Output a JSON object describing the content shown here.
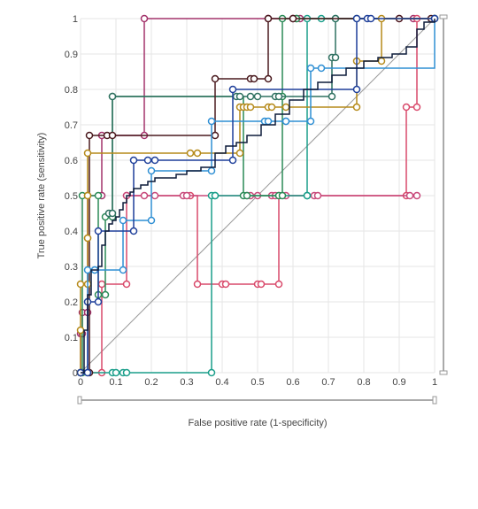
{
  "chart_data": {
    "type": "line",
    "title": "",
    "xlabel": "False positive rate (1-specificity)",
    "ylabel": "True positive rate (sensitivity)",
    "xlim": [
      0,
      1
    ],
    "ylim": [
      0,
      1
    ],
    "x_ticks": [
      "0",
      "0.1",
      "0.2",
      "0.3",
      "0.4",
      "0.5",
      "0.6",
      "0.7",
      "0.8",
      "0.9",
      "1"
    ],
    "y_ticks": [
      "0",
      "0.1",
      "0.2",
      "0.3",
      "0.4",
      "0.5",
      "0.6",
      "0.7",
      "0.8",
      "0.9",
      "1"
    ],
    "grid": true,
    "legend": "none",
    "reference_line": {
      "x": [
        0,
        1
      ],
      "y": [
        0,
        1
      ],
      "color": "#999999"
    },
    "series": [
      {
        "color": "#a3336b",
        "x": [
          0,
          0,
          0.005,
          0.005,
          0.02,
          0.02,
          0.06,
          0.06,
          0.18,
          0.18,
          0.53,
          0.53,
          0.6,
          0.6,
          0.62,
          0.9,
          0.94,
          1
        ],
        "y": [
          0,
          0.11,
          0.11,
          0.17,
          0.17,
          0.5,
          0.5,
          0.67,
          0.67,
          1,
          1,
          1,
          1,
          1,
          1,
          1,
          1,
          1
        ]
      },
      {
        "color": "#d94a6b",
        "x": [
          0,
          0.06,
          0.06,
          0.13,
          0.13,
          0.31,
          0.33,
          0.4,
          0.41,
          0.5,
          0.51,
          0.56,
          0.56,
          0.92,
          0.92,
          0.95,
          0.95,
          1
        ],
        "y": [
          0,
          0,
          0.25,
          0.25,
          0.5,
          0.5,
          0.25,
          0.25,
          0.25,
          0.25,
          0.25,
          0.25,
          0.5,
          0.5,
          0.75,
          0.75,
          1,
          1
        ]
      },
      {
        "color": "#c8487a",
        "x": [
          0.13,
          0.18,
          0.21,
          0.29,
          0.3,
          0.47,
          0.48,
          0.5,
          0.54,
          0.55,
          0.58,
          0.66,
          0.67,
          0.93,
          0.95
        ],
        "y": [
          0.5,
          0.5,
          0.5,
          0.5,
          0.5,
          0.5,
          0.5,
          0.5,
          0.5,
          0.5,
          0.5,
          0.5,
          0.5,
          0.5,
          0.5
        ]
      },
      {
        "color": "#1a9e8a",
        "x": [
          0,
          0.09,
          0.1,
          0.12,
          0.13,
          0.37,
          0.37,
          0.38,
          0.38,
          0.64,
          0.64,
          0.64,
          0.64,
          0.68,
          0.72,
          1
        ],
        "y": [
          0,
          0,
          0,
          0,
          0,
          0,
          0.5,
          0.5,
          0.5,
          0.5,
          0.5,
          0.5,
          1,
          1,
          1,
          1
        ]
      },
      {
        "color": "#2a8a56",
        "x": [
          0,
          0.005,
          0.005,
          0.05,
          0.05,
          0.07,
          0.07,
          0.09,
          0.09,
          0.46,
          0.47,
          0.56,
          0.57,
          0.57,
          0.57,
          0.61,
          0.61,
          1
        ],
        "y": [
          0,
          0,
          0.5,
          0.5,
          0.22,
          0.22,
          0.44,
          0.44,
          0.78,
          0.5,
          0.5,
          0.5,
          0.5,
          0.78,
          1,
          1,
          1,
          1
        ]
      },
      {
        "color": "#2e7060",
        "x": [
          0.08,
          0.09,
          0.09,
          0.44,
          0.45,
          0.48,
          0.5,
          0.55,
          0.56,
          0.71,
          0.71,
          0.72,
          0.72,
          0.78,
          1
        ],
        "y": [
          0.45,
          0.45,
          0.78,
          0.78,
          0.78,
          0.78,
          0.78,
          0.78,
          0.78,
          0.78,
          0.89,
          0.89,
          1,
          1,
          1
        ]
      },
      {
        "color": "#4a1a1e",
        "x": [
          0,
          0.025,
          0.025,
          0.075,
          0.09,
          0.38,
          0.38,
          0.48,
          0.49,
          0.53,
          0.53,
          0.6,
          0.9,
          0.99
        ],
        "y": [
          0,
          0,
          0.67,
          0.67,
          0.67,
          0.67,
          0.83,
          0.83,
          0.83,
          0.83,
          1,
          1,
          1,
          1
        ]
      },
      {
        "color": "#b58a1a",
        "x": [
          0,
          0,
          0,
          0.02,
          0.02,
          0.02,
          0.02,
          0.02,
          0.02,
          0.31,
          0.33,
          0.45,
          0.45,
          0.46,
          0.47,
          0.48,
          0.53,
          0.54,
          0.58,
          0.78,
          0.78,
          0.85,
          0.85,
          1
        ],
        "y": [
          0,
          0.12,
          0.25,
          0.25,
          0.38,
          0.38,
          0.5,
          0.5,
          0.62,
          0.62,
          0.62,
          0.62,
          0.75,
          0.75,
          0.75,
          0.75,
          0.75,
          0.75,
          0.75,
          0.75,
          0.88,
          0.88,
          1,
          1
        ]
      },
      {
        "color": "#2f8fd4",
        "x": [
          0,
          0.02,
          0.02,
          0.04,
          0.04,
          0.12,
          0.12,
          0.2,
          0.2,
          0.37,
          0.37,
          0.52,
          0.53,
          0.58,
          0.58,
          0.65,
          0.65,
          0.68,
          1
        ],
        "y": [
          0,
          0,
          0.29,
          0.29,
          0.29,
          0.29,
          0.43,
          0.43,
          0.57,
          0.57,
          0.71,
          0.71,
          0.71,
          0.71,
          0.71,
          0.71,
          0.86,
          0.86,
          1
        ]
      },
      {
        "color": "#1e3f9a",
        "x": [
          0,
          0.02,
          0.02,
          0.05,
          0.05,
          0.15,
          0.15,
          0.19,
          0.21,
          0.43,
          0.43,
          0.78,
          0.78,
          0.81,
          0.82,
          1
        ],
        "y": [
          0,
          0,
          0.2,
          0.2,
          0.4,
          0.4,
          0.6,
          0.6,
          0.6,
          0.6,
          0.8,
          0.8,
          1,
          1,
          1,
          1
        ]
      },
      {
        "color": "#0d1b3a",
        "x": [
          0,
          0.01,
          0.02,
          0.03,
          0.05,
          0.06,
          0.07,
          0.08,
          0.09,
          0.1,
          0.11,
          0.12,
          0.13,
          0.14,
          0.15,
          0.17,
          0.19,
          0.21,
          0.24,
          0.27,
          0.3,
          0.34,
          0.38,
          0.41,
          0.44,
          0.47,
          0.51,
          0.55,
          0.59,
          0.63,
          0.67,
          0.71,
          0.75,
          0.8,
          0.84,
          0.88,
          0.92,
          0.95,
          0.97,
          1
        ],
        "y": [
          0,
          0.12,
          0.22,
          0.29,
          0.3,
          0.36,
          0.4,
          0.42,
          0.43,
          0.44,
          0.46,
          0.48,
          0.5,
          0.51,
          0.52,
          0.53,
          0.54,
          0.55,
          0.55,
          0.56,
          0.57,
          0.58,
          0.62,
          0.64,
          0.65,
          0.67,
          0.7,
          0.73,
          0.77,
          0.8,
          0.82,
          0.84,
          0.86,
          0.88,
          0.89,
          0.9,
          0.92,
          0.97,
          0.99,
          1
        ]
      }
    ]
  }
}
